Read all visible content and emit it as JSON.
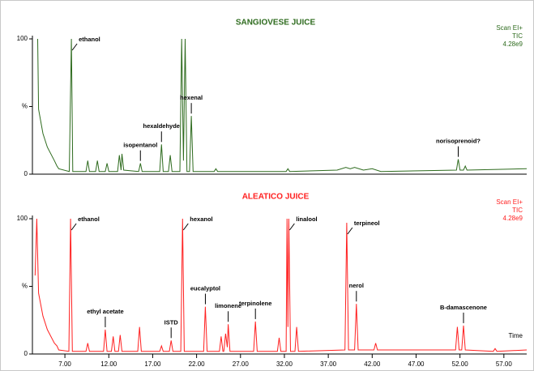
{
  "chart_data": [
    {
      "type": "line",
      "title": "SANGIOVESE JUICE",
      "color": "#2e6b1e",
      "scan_info": [
        "Scan EI+",
        "TIC",
        "4.28e9"
      ],
      "x": [
        3.9,
        4.0,
        4.5,
        5.0,
        5.8,
        6.1,
        6.3,
        7.5,
        7.74,
        7.9,
        9.4,
        9.6,
        9.8,
        10.5,
        10.7,
        10.9,
        11.6,
        11.8,
        12.0,
        13.0,
        13.2,
        13.4,
        13.5,
        13.7,
        15.4,
        15.6,
        15.8,
        17.8,
        18.0,
        18.2,
        18.8,
        19.0,
        19.2,
        20.1,
        20.3,
        20.5,
        20.7,
        20.9,
        21.2,
        21.4,
        21.6,
        24.0,
        24.2,
        24.4,
        32.2,
        32.4,
        32.6,
        38.0,
        39.0,
        39.5,
        40.0,
        41.0,
        42.0,
        43.0,
        51.6,
        51.8,
        52.0,
        52.4,
        52.6,
        52.8,
        59.6
      ],
      "values": [
        100,
        48,
        30,
        20,
        10,
        6,
        4,
        2,
        100,
        2,
        2,
        10,
        2,
        2,
        10,
        2,
        2,
        8,
        2,
        2,
        14,
        3,
        15,
        3,
        2,
        8,
        2,
        2,
        22,
        2,
        2,
        14,
        2,
        2,
        100,
        10,
        100,
        2,
        2,
        43,
        2,
        2,
        4,
        2,
        2,
        4,
        2,
        3,
        5,
        4,
        5,
        3,
        4,
        2,
        3,
        11,
        3,
        3,
        6,
        3,
        4
      ],
      "xlim": [
        3.3,
        59.6
      ],
      "ylim": [
        0,
        100
      ],
      "yticks": [
        0,
        {
          "value": 50,
          "label": "%"
        },
        100
      ],
      "annotations": [
        {
          "text": "ethanol",
          "x": 7.74,
          "y": 100
        },
        {
          "text": "isopentanol",
          "x": 15.6,
          "y": 8
        },
        {
          "text": "hexaldehyde",
          "x": 18.0,
          "y": 22
        },
        {
          "text": "hexenal",
          "x": 21.4,
          "y": 43
        },
        {
          "text": "norisoprenoid?",
          "x": 51.8,
          "y": 11
        }
      ]
    },
    {
      "type": "line",
      "title": "ALEATICO JUICE",
      "color": "#ff2020",
      "scan_info": [
        "Scan EI+",
        "TIC",
        "4.28e9"
      ],
      "x": [
        3.6,
        3.8,
        4.0,
        4.5,
        5.0,
        5.8,
        6.1,
        6.3,
        7.45,
        7.65,
        7.85,
        9.4,
        9.6,
        9.8,
        11.4,
        11.6,
        11.8,
        12.3,
        12.5,
        12.7,
        13.1,
        13.3,
        13.5,
        15.3,
        15.5,
        15.7,
        17.8,
        18.0,
        18.2,
        18.9,
        19.1,
        19.3,
        20.2,
        20.4,
        20.6,
        22.8,
        23.0,
        23.2,
        24.6,
        24.8,
        25.0,
        25.1,
        25.3,
        25.5,
        25.6,
        25.8,
        28.5,
        28.7,
        28.9,
        31.2,
        31.4,
        31.6,
        32.2,
        32.3,
        32.4,
        32.5,
        32.7,
        33.2,
        33.4,
        33.6,
        38.9,
        39.1,
        39.3,
        40.0,
        40.2,
        40.4,
        42.2,
        42.4,
        42.6,
        51.5,
        51.7,
        51.9,
        52.2,
        52.4,
        52.6,
        55.8,
        56.0,
        56.2,
        59.6
      ],
      "values": [
        58,
        100,
        45,
        28,
        18,
        8,
        6,
        3,
        2,
        100,
        2,
        2,
        8,
        2,
        2,
        18,
        2,
        2,
        13,
        2,
        2,
        14,
        2,
        2,
        20,
        2,
        2,
        6,
        2,
        2,
        10,
        2,
        2,
        100,
        2,
        2,
        35,
        2,
        2,
        13,
        2,
        2,
        15,
        5,
        22,
        2,
        2,
        24,
        2,
        2,
        12,
        2,
        2,
        100,
        20,
        100,
        2,
        2,
        20,
        2,
        3,
        97,
        3,
        3,
        37,
        3,
        3,
        8,
        3,
        3,
        20,
        3,
        3,
        21,
        3,
        2,
        4,
        2,
        3
      ],
      "xlim": [
        3.3,
        59.6
      ],
      "ylim": [
        0,
        100
      ],
      "yticks": [
        0,
        {
          "value": 50,
          "label": "%"
        },
        100
      ],
      "xticks": [
        {
          "value": 7,
          "label": "7.00"
        },
        {
          "value": 12,
          "label": "12.00"
        },
        {
          "value": 17,
          "label": "17.00"
        },
        {
          "value": 22,
          "label": "22.00"
        },
        {
          "value": 27,
          "label": "27.00"
        },
        {
          "value": 32,
          "label": "32.00"
        },
        {
          "value": 37,
          "label": "37.00"
        },
        {
          "value": 42,
          "label": "42.00"
        },
        {
          "value": 47,
          "label": "47.00"
        },
        {
          "value": 52,
          "label": "52.00"
        },
        {
          "value": 57,
          "label": "57.00"
        }
      ],
      "xlabel": "Time",
      "annotations": [
        {
          "text": "ethanol",
          "x": 7.65,
          "y": 100
        },
        {
          "text": "ethyl acetate",
          "x": 11.6,
          "y": 18
        },
        {
          "text": "ISTD",
          "x": 19.1,
          "y": 10
        },
        {
          "text": "hexanol",
          "x": 20.4,
          "y": 100
        },
        {
          "text": "eucalyptol",
          "x": 23.0,
          "y": 35
        },
        {
          "text": "limonene",
          "x": 25.6,
          "y": 22
        },
        {
          "text": "terpinolene",
          "x": 28.7,
          "y": 24
        },
        {
          "text": "linalool",
          "x": 32.5,
          "y": 100
        },
        {
          "text": "terpineol",
          "x": 39.1,
          "y": 97
        },
        {
          "text": "nerol",
          "x": 40.2,
          "y": 37
        },
        {
          "text": "B-damascenone",
          "x": 52.4,
          "y": 21
        }
      ]
    }
  ]
}
